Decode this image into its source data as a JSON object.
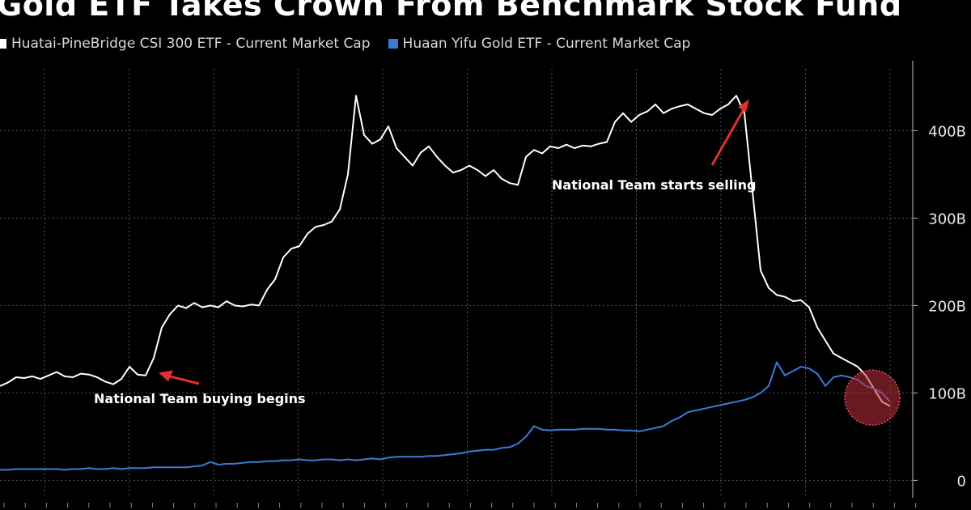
{
  "title": "Gold ETF Takes Crown From Benchmark Stock Fund",
  "legend": [
    {
      "label": "Huatai-PineBridge CSI 300 ETF - Current Market Cap",
      "color": "#ffffff"
    },
    {
      "label": "Huaan Yifu Gold ETF - Current Market Cap",
      "color": "#3a7bd5"
    }
  ],
  "colors": {
    "background": "#000000",
    "grid": "#555555",
    "csi300": "#ffffff",
    "gold": "#3a7bd5",
    "annotation_arrow": "#e03030",
    "highlight_circle": "#c0303a"
  },
  "chart_data": {
    "type": "line",
    "title": "Gold ETF Takes Crown From Benchmark Stock Fund",
    "ylim": [
      -20,
      480
    ],
    "y_ticks": [
      0,
      100,
      200,
      300,
      400
    ],
    "y_tick_labels": [
      "0",
      "100B",
      "200B",
      "300B",
      "400B"
    ],
    "y_axis_side": "right",
    "grid": true,
    "legend_position": "top-left",
    "x_range": [
      0,
      110
    ],
    "series": [
      {
        "name": "Huatai-PineBridge CSI 300 ETF - Current Market Cap",
        "color": "#ffffff",
        "x": [
          0,
          1,
          2,
          3,
          4,
          5,
          6,
          7,
          8,
          9,
          10,
          11,
          12,
          13,
          14,
          15,
          16,
          17,
          18,
          19,
          20,
          21,
          22,
          23,
          24,
          25,
          26,
          27,
          28,
          29,
          30,
          31,
          32,
          33,
          34,
          35,
          36,
          37,
          38,
          39,
          40,
          41,
          42,
          43,
          44,
          45,
          46,
          47,
          48,
          49,
          50,
          51,
          52,
          53,
          54,
          55,
          56,
          57,
          58,
          59,
          60,
          61,
          62,
          63,
          64,
          65,
          66,
          67,
          68,
          69,
          70,
          71,
          72,
          73,
          74,
          75,
          76,
          77,
          78,
          79,
          80,
          81,
          82,
          83,
          84,
          85,
          86,
          87,
          88,
          89,
          90,
          91,
          92,
          93,
          94,
          95,
          96,
          97,
          98,
          99,
          100,
          101,
          102,
          103,
          104,
          105,
          106,
          107,
          108,
          109,
          110
        ],
        "values": [
          108,
          112,
          118,
          117,
          119,
          116,
          120,
          124,
          119,
          118,
          122,
          121,
          118,
          113,
          110,
          116,
          130,
          121,
          120,
          140,
          175,
          190,
          200,
          197,
          203,
          198,
          200,
          198,
          205,
          200,
          199,
          201,
          200,
          218,
          230,
          255,
          265,
          268,
          282,
          290,
          292,
          296,
          310,
          350,
          440,
          395,
          385,
          390,
          405,
          380,
          370,
          360,
          375,
          382,
          370,
          360,
          352,
          355,
          360,
          355,
          348,
          355,
          345,
          340,
          338,
          370,
          378,
          374,
          382,
          380,
          384,
          380,
          383,
          382,
          385,
          387,
          410,
          420,
          410,
          418,
          422,
          430,
          420,
          425,
          428,
          430,
          425,
          420,
          418,
          425,
          430,
          440,
          420,
          330,
          240,
          220,
          212,
          210,
          205,
          206,
          198,
          175,
          160,
          145,
          140,
          135,
          130,
          120,
          105,
          90,
          85
        ],
        "note": ""
      },
      {
        "name": "Huaan Yifu Gold ETF - Current Market Cap",
        "color": "#3a7bd5",
        "x": [
          0,
          1,
          2,
          3,
          4,
          5,
          6,
          7,
          8,
          9,
          10,
          11,
          12,
          13,
          14,
          15,
          16,
          17,
          18,
          19,
          20,
          21,
          22,
          23,
          24,
          25,
          26,
          27,
          28,
          29,
          30,
          31,
          32,
          33,
          34,
          35,
          36,
          37,
          38,
          39,
          40,
          41,
          42,
          43,
          44,
          45,
          46,
          47,
          48,
          49,
          50,
          51,
          52,
          53,
          54,
          55,
          56,
          57,
          58,
          59,
          60,
          61,
          62,
          63,
          64,
          65,
          66,
          67,
          68,
          69,
          70,
          71,
          72,
          73,
          74,
          75,
          76,
          77,
          78,
          79,
          80,
          81,
          82,
          83,
          84,
          85,
          86,
          87,
          88,
          89,
          90,
          91,
          92,
          93,
          94,
          95,
          96,
          97,
          98,
          99,
          100,
          101,
          102,
          103,
          104,
          105,
          106,
          107,
          108,
          109,
          110
        ],
        "values": [
          12,
          12,
          13,
          13,
          13,
          13,
          13,
          13,
          12,
          13,
          13,
          14,
          13,
          13,
          14,
          13,
          14,
          14,
          14,
          15,
          15,
          15,
          15,
          15,
          16,
          17,
          21,
          18,
          19,
          19,
          20,
          21,
          21,
          22,
          22,
          23,
          23,
          24,
          23,
          23,
          24,
          24,
          23,
          24,
          23,
          24,
          25,
          24,
          26,
          27,
          27,
          27,
          27,
          28,
          28,
          29,
          30,
          31,
          33,
          34,
          35,
          35,
          37,
          38,
          42,
          50,
          62,
          58,
          57,
          58,
          58,
          58,
          59,
          59,
          59,
          58,
          58,
          57,
          57,
          56,
          58,
          60,
          62,
          68,
          72,
          78,
          80,
          82,
          84,
          86,
          88,
          90,
          92,
          95,
          100,
          108,
          135,
          120,
          125,
          130,
          128,
          122,
          108,
          118,
          120,
          118,
          115,
          108,
          105,
          100,
          90
        ],
        "note": ""
      }
    ],
    "annotations": [
      {
        "text": "National Team buying begins",
        "target_x": 19,
        "target_y": 125
      },
      {
        "text": "National Team starts selling",
        "target_x": 92,
        "target_y": 438
      }
    ],
    "highlight": {
      "x": 109,
      "y": 90
    }
  }
}
